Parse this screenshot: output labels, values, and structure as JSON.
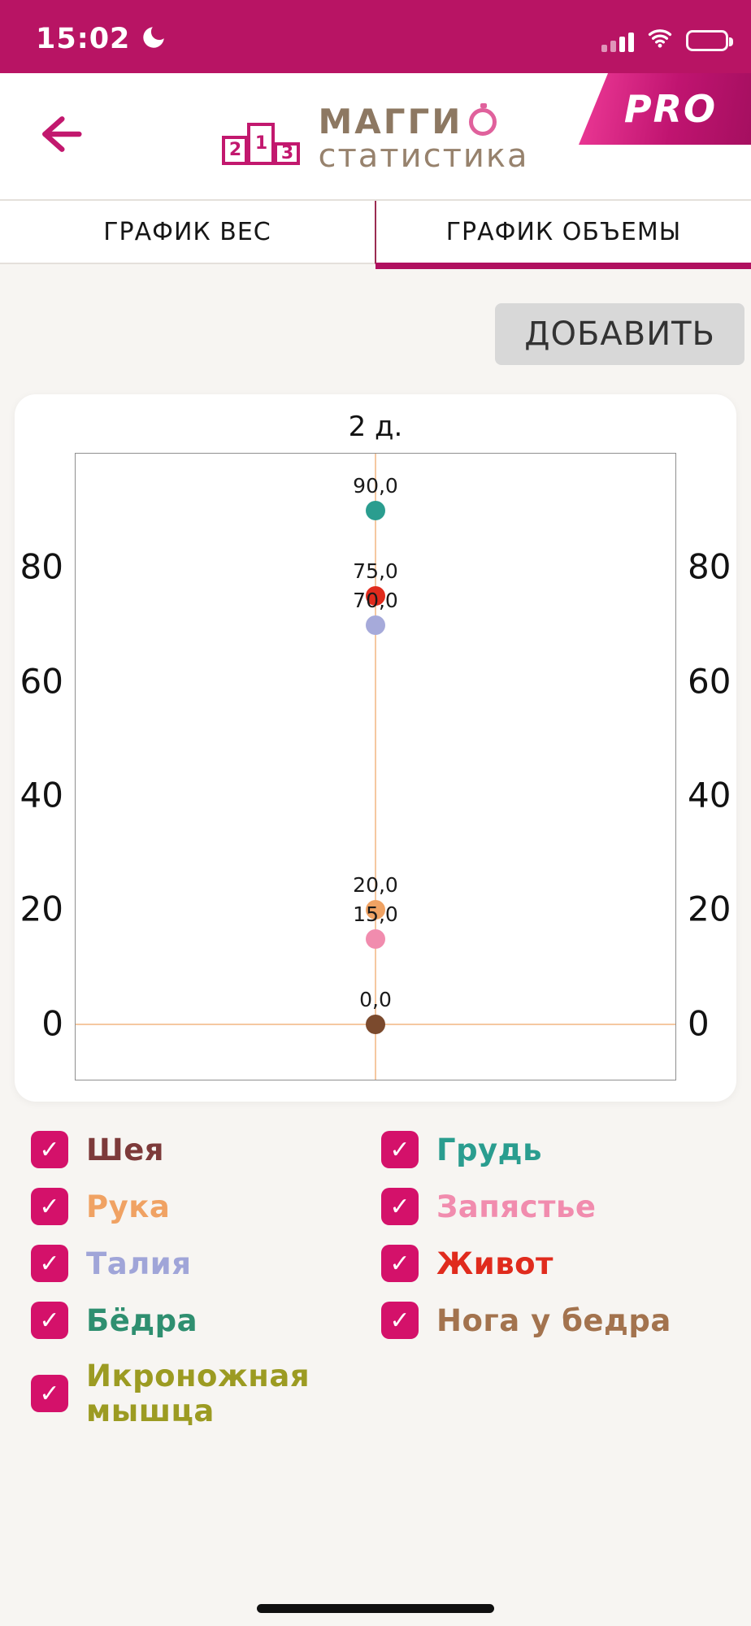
{
  "status_bar": {
    "time": "15:02",
    "icons": [
      "crescent-moon",
      "cellular-signal",
      "wifi",
      "battery"
    ]
  },
  "header": {
    "brand_title": "МАГГИ",
    "brand_subtitle": "статистика",
    "podium_numbers": [
      "2",
      "1",
      "3"
    ],
    "pro_badge": "PRO"
  },
  "tabs": [
    {
      "label": "ГРАФИК ВЕС",
      "active": false
    },
    {
      "label": "ГРАФИК ОБЪЕМЫ",
      "active": true
    }
  ],
  "toolbar": {
    "add_label": "ДОБАВИТЬ"
  },
  "chart_data": {
    "type": "scatter",
    "title": "2 д.",
    "x_categories": [
      "2 д."
    ],
    "ylim": [
      -10,
      100
    ],
    "yticks": [
      0,
      20,
      40,
      60,
      80
    ],
    "axis_label_sides": [
      "left",
      "right"
    ],
    "grid": false,
    "crosshair": {
      "x": "2 д.",
      "y": 0,
      "color": "#f5c8a1"
    },
    "points": [
      {
        "y": 90.0,
        "label": "90,0",
        "color": "#2a9d8f"
      },
      {
        "y": 75.0,
        "label": "75,0",
        "color": "#e02b1d"
      },
      {
        "y": 70.0,
        "label": "70,0",
        "color": "#a6aada"
      },
      {
        "y": 20.0,
        "label": "20,0",
        "color": "#efa263"
      },
      {
        "y": 15.0,
        "label": "15,0",
        "color": "#f18cae"
      },
      {
        "y": 0.0,
        "label": "0,0",
        "color": "#7b4a2d"
      }
    ]
  },
  "legend": {
    "check_glyph": "✓",
    "checkbox_color": "#d4116a",
    "items": [
      {
        "label": "Шея",
        "color": "#7d3a3a",
        "checked": true
      },
      {
        "label": "Грудь",
        "color": "#2a9d8f",
        "checked": true
      },
      {
        "label": "Рука",
        "color": "#f0a263",
        "checked": true
      },
      {
        "label": "Запястье",
        "color": "#f18cae",
        "checked": true
      },
      {
        "label": "Талия",
        "color": "#a0a5d8",
        "checked": true
      },
      {
        "label": "Живот",
        "color": "#e02b1d",
        "checked": true
      },
      {
        "label": "Бёдра",
        "color": "#2f8f70",
        "checked": true
      },
      {
        "label": "Нога у бедра",
        "color": "#a3734e",
        "checked": true
      },
      {
        "label": "Икроножная мышца",
        "color": "#9c9b22",
        "checked": true
      }
    ]
  },
  "colors": {
    "accent": "#c2186e",
    "status_bar_bg": "#b81464",
    "tab_underline": "#b0105f",
    "page_bg": "#f7f5f2"
  }
}
